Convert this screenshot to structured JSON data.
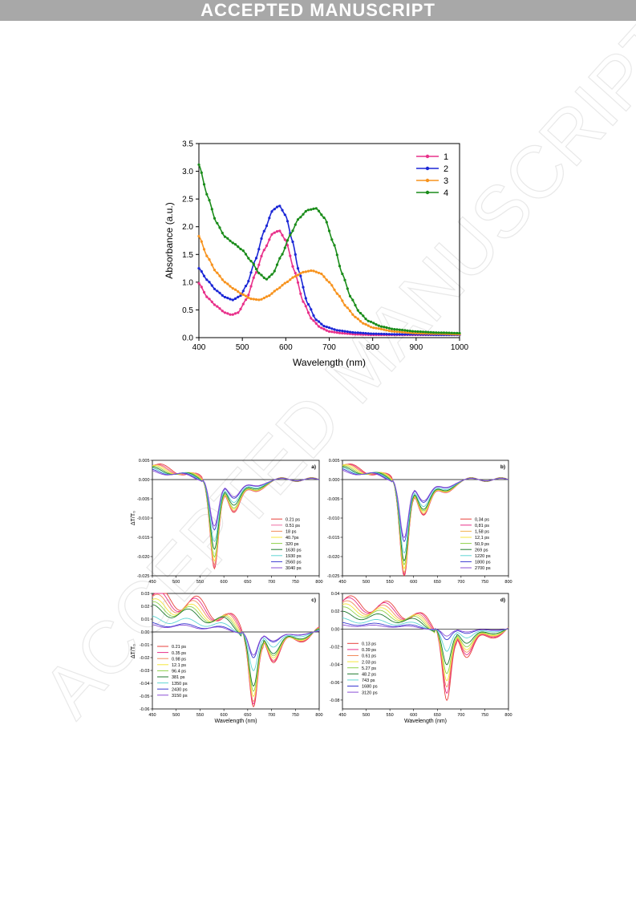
{
  "header": {
    "banner_text": "ACCEPTED MANUSCRIPT"
  },
  "watermark_text": "ACCEPTED MANUSCRIPT",
  "colors": {
    "banner": "#a8a8a8",
    "c1": "#e8308a",
    "c2": "#1b27d6",
    "c3": "#f7931e",
    "c4": "#1a8c1a"
  },
  "chart_data": [
    {
      "type": "line",
      "xlabel": "Wavelength (nm)",
      "ylabel": "Absorbance (a.u.)",
      "xlim": [
        400,
        1000
      ],
      "ylim": [
        0,
        3.5
      ],
      "xticks": [
        400,
        500,
        600,
        700,
        800,
        900,
        1000
      ],
      "yticks": [
        0.0,
        0.5,
        1.0,
        1.5,
        2.0,
        2.5,
        3.0,
        3.5
      ],
      "legend": "top-right",
      "series": [
        {
          "name": "1",
          "color": "#e8308a",
          "x": [
            400,
            420,
            440,
            460,
            475,
            490,
            510,
            530,
            550,
            570,
            585,
            600,
            620,
            640,
            660,
            680,
            700,
            730,
            760,
            800,
            850,
            900,
            950,
            1000
          ],
          "y": [
            0.98,
            0.72,
            0.57,
            0.45,
            0.41,
            0.45,
            0.7,
            1.15,
            1.58,
            1.88,
            1.93,
            1.75,
            1.2,
            0.65,
            0.33,
            0.18,
            0.11,
            0.08,
            0.06,
            0.05,
            0.05,
            0.05,
            0.05,
            0.05
          ]
        },
        {
          "name": "2",
          "color": "#1b27d6",
          "x": [
            400,
            420,
            440,
            460,
            478,
            495,
            510,
            530,
            550,
            570,
            585,
            600,
            615,
            630,
            650,
            670,
            690,
            720,
            760,
            800,
            850,
            900,
            950,
            1000
          ],
          "y": [
            1.25,
            1.03,
            0.85,
            0.73,
            0.68,
            0.75,
            0.95,
            1.4,
            1.92,
            2.3,
            2.38,
            2.2,
            1.75,
            1.2,
            0.62,
            0.32,
            0.2,
            0.13,
            0.09,
            0.07,
            0.06,
            0.06,
            0.05,
            0.05
          ]
        },
        {
          "name": "3",
          "color": "#f7931e",
          "x": [
            400,
            420,
            440,
            460,
            480,
            500,
            520,
            540,
            560,
            580,
            600,
            620,
            640,
            660,
            680,
            700,
            720,
            740,
            760,
            780,
            800,
            850,
            900,
            950,
            1000
          ],
          "y": [
            1.83,
            1.45,
            1.18,
            1.0,
            0.88,
            0.78,
            0.7,
            0.68,
            0.75,
            0.87,
            0.99,
            1.1,
            1.18,
            1.21,
            1.16,
            1.0,
            0.78,
            0.55,
            0.37,
            0.25,
            0.18,
            0.11,
            0.08,
            0.07,
            0.06
          ]
        },
        {
          "name": "4",
          "color": "#1a8c1a",
          "x": [
            400,
            420,
            440,
            460,
            480,
            500,
            520,
            540,
            555,
            570,
            590,
            610,
            630,
            650,
            670,
            690,
            710,
            730,
            750,
            770,
            790,
            820,
            850,
            900,
            950,
            1000
          ],
          "y": [
            3.12,
            2.55,
            2.08,
            1.82,
            1.7,
            1.58,
            1.38,
            1.15,
            1.05,
            1.15,
            1.48,
            1.85,
            2.15,
            2.3,
            2.33,
            2.15,
            1.7,
            1.15,
            0.72,
            0.45,
            0.3,
            0.2,
            0.15,
            0.11,
            0.09,
            0.08
          ]
        }
      ]
    },
    {
      "type": "line",
      "panel_label": "a)",
      "ylabel": "ΔT/T₀",
      "xlim": [
        450,
        800
      ],
      "ylim": [
        -0.025,
        0.005
      ],
      "xticks": [
        450,
        500,
        550,
        600,
        650,
        700,
        750,
        800
      ],
      "yticks": [
        0.005,
        0.0,
        -0.005,
        -0.01,
        -0.015,
        -0.02,
        -0.025
      ],
      "legend": "bottom-right",
      "peak_x": 580,
      "series": [
        {
          "name": "0.21 ps",
          "color": "#e8413c",
          "offset": 0.0035,
          "depth": -0.023
        },
        {
          "name": "0.51 ps",
          "color": "#f06fa4",
          "offset": 0.0033,
          "depth": -0.0225
        },
        {
          "name": "18 ps",
          "color": "#f28a5c",
          "offset": 0.0032,
          "depth": -0.022
        },
        {
          "name": "40.7ps",
          "color": "#f5e63c",
          "offset": 0.003,
          "depth": -0.021
        },
        {
          "name": "320 ps",
          "color": "#8fd24a",
          "offset": 0.0028,
          "depth": -0.02
        },
        {
          "name": "1630 ps",
          "color": "#1f7a2e",
          "offset": 0.0026,
          "depth": -0.018
        },
        {
          "name": "1930 ps",
          "color": "#5fd6d3",
          "offset": 0.0024,
          "depth": -0.016
        },
        {
          "name": "2560 ps",
          "color": "#3a3ad1",
          "offset": 0.0022,
          "depth": -0.013
        },
        {
          "name": "3040 ps",
          "color": "#8b4fd6",
          "offset": 0.002,
          "depth": -0.012
        }
      ]
    },
    {
      "type": "line",
      "panel_label": "b)",
      "xlim": [
        450,
        800
      ],
      "ylim": [
        -0.025,
        0.005
      ],
      "xticks": [
        450,
        500,
        550,
        600,
        650,
        700,
        750,
        800
      ],
      "yticks": [
        0.005,
        0.0,
        -0.005,
        -0.01,
        -0.015,
        -0.02,
        -0.025
      ],
      "legend": "bottom-right",
      "peak_x": 580,
      "series": [
        {
          "name": "0,34 ps",
          "color": "#e8413c",
          "offset": 0.0035,
          "depth": -0.025
        },
        {
          "name": "0,81 ps",
          "color": "#e8308a",
          "offset": 0.0034,
          "depth": -0.0245
        },
        {
          "name": "1,58 ps",
          "color": "#f2b24c",
          "offset": 0.0033,
          "depth": -0.024
        },
        {
          "name": "12,1 ps",
          "color": "#f5e63c",
          "offset": 0.0031,
          "depth": -0.023
        },
        {
          "name": "50,9 ps",
          "color": "#8fd24a",
          "offset": 0.0029,
          "depth": -0.022
        },
        {
          "name": "269 ps",
          "color": "#1f7a2e",
          "offset": 0.0027,
          "depth": -0.021
        },
        {
          "name": "1220 ps",
          "color": "#5fd6d3",
          "offset": 0.0025,
          "depth": -0.019
        },
        {
          "name": "1800 ps",
          "color": "#3a3ad1",
          "offset": 0.0023,
          "depth": -0.016
        },
        {
          "name": "2700 ps",
          "color": "#8b4fd6",
          "offset": 0.0021,
          "depth": -0.015
        }
      ]
    },
    {
      "type": "line",
      "panel_label": "c)",
      "ylabel": "ΔT/T₀",
      "xlabel": "Wavelength (nm)",
      "xlim": [
        450,
        800
      ],
      "ylim": [
        -0.06,
        0.03
      ],
      "xticks": [
        450,
        500,
        550,
        600,
        650,
        700,
        750,
        800
      ],
      "yticks": [
        0.03,
        0.02,
        0.01,
        0.0,
        -0.01,
        -0.02,
        -0.03,
        -0.04,
        -0.05,
        -0.06
      ],
      "legend": "bottom-left",
      "peak_x": 662,
      "series": [
        {
          "name": "0.21 ps",
          "color": "#e8413c",
          "offset": 0.028,
          "depth": -0.058
        },
        {
          "name": "0.35 ps",
          "color": "#e8308a",
          "offset": 0.026,
          "depth": -0.056
        },
        {
          "name": "0.98 ps",
          "color": "#f28a5c",
          "offset": 0.024,
          "depth": -0.054
        },
        {
          "name": "12.1 ps",
          "color": "#f5e63c",
          "offset": 0.021,
          "depth": -0.05
        },
        {
          "name": "96.4 ps",
          "color": "#8fd24a",
          "offset": 0.019,
          "depth": -0.046
        },
        {
          "name": "381 ps",
          "color": "#1f7a2e",
          "offset": 0.017,
          "depth": -0.042
        },
        {
          "name": "1350 ps",
          "color": "#5fd6d3",
          "offset": 0.01,
          "depth": -0.03
        },
        {
          "name": "2430 ps",
          "color": "#3a3ad1",
          "offset": 0.006,
          "depth": -0.02
        },
        {
          "name": "3150 ps",
          "color": "#8b4fd6",
          "offset": 0.005,
          "depth": -0.018
        }
      ]
    },
    {
      "type": "line",
      "panel_label": "d)",
      "xlabel": "Wavelength (nm)",
      "xlim": [
        450,
        800
      ],
      "ylim": [
        -0.09,
        0.04
      ],
      "xticks": [
        450,
        500,
        550,
        600,
        650,
        700,
        750,
        800
      ],
      "yticks": [
        0.04,
        0.02,
        0.0,
        -0.02,
        -0.04,
        -0.06,
        -0.08
      ],
      "legend": "bottom-left",
      "peak_x": 670,
      "series": [
        {
          "name": "0.13 ps",
          "color": "#e8413c",
          "offset": 0.031,
          "depth": -0.08
        },
        {
          "name": "0.39 ps",
          "color": "#e8308a",
          "offset": 0.029,
          "depth": -0.072
        },
        {
          "name": "0.61 ps",
          "color": "#f28a5c",
          "offset": 0.026,
          "depth": -0.065
        },
        {
          "name": "2.03 ps",
          "color": "#f5e63c",
          "offset": 0.023,
          "depth": -0.058
        },
        {
          "name": "5.27 ps",
          "color": "#8fd24a",
          "offset": 0.02,
          "depth": -0.05
        },
        {
          "name": "48.2 ps",
          "color": "#1f7a2e",
          "offset": 0.016,
          "depth": -0.04
        },
        {
          "name": "743 ps",
          "color": "#5fd6d3",
          "offset": 0.01,
          "depth": -0.025
        },
        {
          "name": "1680 ps",
          "color": "#3a3ad1",
          "offset": 0.006,
          "depth": -0.012
        },
        {
          "name": "3120 ps",
          "color": "#8b4fd6",
          "offset": 0.004,
          "depth": -0.008
        }
      ]
    }
  ]
}
